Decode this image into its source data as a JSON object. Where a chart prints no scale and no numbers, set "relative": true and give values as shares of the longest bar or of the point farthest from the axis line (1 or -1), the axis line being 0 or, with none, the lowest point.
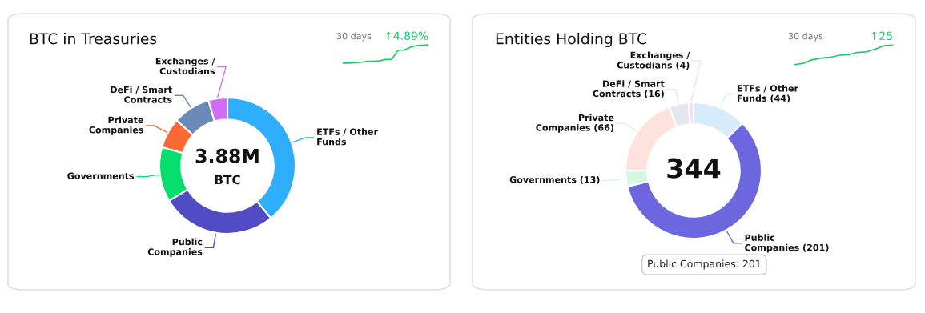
{
  "chart_data": [
    {
      "type": "donut",
      "title": "BTC in Treasuries",
      "categories": [
        "ETFs / Other\nFunds",
        "Public\nCompanies",
        "Governments",
        "Private\nCompanies",
        "DeFi / Smart\nContracts",
        "Exchanges /\nCustodians"
      ],
      "values": [
        39,
        27.4,
        13,
        7.2,
        8.9,
        4.5
      ],
      "colors": [
        "#2eaefc",
        "#524bc6",
        "#05dd6c",
        "#fc6935",
        "#6b8ab8",
        "#d06cf5"
      ],
      "annotations": [
        "3.88M",
        "BTC"
      ]
    },
    {
      "type": "line",
      "title": "30 days",
      "annotations": [
        "↑4.89%"
      ],
      "relative": true,
      "categories": [
        null,
        null,
        null,
        null,
        null,
        null,
        null,
        null,
        null,
        null,
        null,
        null,
        null,
        null,
        null
      ],
      "series": [
        {
          "color": "#1ec96a",
          "values": [
            0,
            0,
            0.02,
            0.05,
            0.1,
            0.1,
            0.12,
            0.2,
            0.21,
            0.7,
            0.72,
            0.86,
            0.96,
            0.98,
            1
          ]
        }
      ]
    },
    {
      "type": "donut",
      "title": "Entities Holding BTC",
      "categories": [
        "ETFs / Other\nFunds",
        "Public\nCompanies",
        "Governments",
        "Private\nCompanies",
        "DeFi / Smart\nContracts",
        "Exchanges /\nCustodians"
      ],
      "values": [
        44,
        201,
        13,
        66,
        16,
        4
      ],
      "value_labels": [
        "(44)",
        "(201)",
        "(13)",
        "(66)",
        "(16)",
        "(4)"
      ],
      "colors": [
        "#d6ecfc",
        "#6c67df",
        "#d5f7e4",
        "#fde3dc",
        "#e3e7ef",
        "#f3dcfb"
      ],
      "annotations": [
        "344",
        {
          "text": "Public Companies: 201",
          "x": "Public\nCompanies"
        }
      ]
    },
    {
      "type": "line",
      "title": "30 days",
      "annotations": [
        "↑25"
      ],
      "relative": true,
      "categories": [
        null,
        null,
        null,
        null,
        null,
        null,
        null,
        null,
        null,
        null,
        null,
        null
      ],
      "series": [
        {
          "color": "#1ec96a",
          "values": [
            0,
            0.07,
            0.25,
            0.33,
            0.37,
            0.48,
            0.5,
            0.62,
            0.65,
            0.78,
            0.97,
            1
          ]
        }
      ]
    }
  ]
}
